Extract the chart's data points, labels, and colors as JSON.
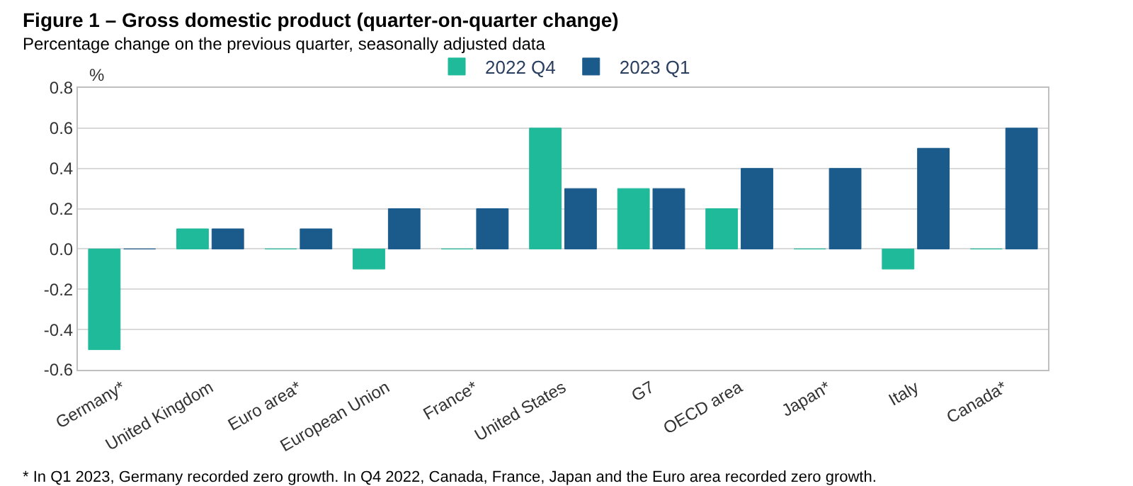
{
  "chart_data": {
    "type": "bar",
    "title": "Figure 1 – Gross domestic product (quarter-on-quarter change)",
    "subtitle": "Percentage change on the previous quarter, seasonally adjusted data",
    "ylabel": "%",
    "categories": [
      "Germany*",
      "United Kingdom",
      "Euro area*",
      "European Union",
      "France*",
      "United States",
      "G7",
      "OECD area",
      "Japan*",
      "Italy",
      "Canada*"
    ],
    "series": [
      {
        "name": "2022 Q4",
        "color": "#1fba9a",
        "values": [
          -0.5,
          0.1,
          0,
          -0.1,
          0,
          0.6,
          0.3,
          0.2,
          0,
          -0.1,
          0
        ]
      },
      {
        "name": "2023 Q1",
        "color": "#1a5b8c",
        "values": [
          0,
          0.1,
          0.1,
          0.2,
          0.2,
          0.3,
          0.3,
          0.4,
          0.4,
          0.5,
          0.6
        ]
      }
    ],
    "ylim": [
      -0.6,
      0.8
    ],
    "yticks": [
      {
        "value": -0.6,
        "label": "-0.6"
      },
      {
        "value": -0.4,
        "label": "-0.4"
      },
      {
        "value": -0.2,
        "label": "-0.2"
      },
      {
        "value": 0,
        "label": "0.0"
      },
      {
        "value": 0.2,
        "label": "0.2"
      },
      {
        "value": 0.4,
        "label": "0.4"
      },
      {
        "value": 0.6,
        "label": "0.6"
      },
      {
        "value": 0.8,
        "label": "0.8"
      }
    ],
    "grid": "y",
    "legend": "top",
    "annotations": [
      "* In Q1 2023, Germany recorded zero growth. In Q4 2022, Canada, France, Japan and the Euro area recorded zero growth."
    ]
  }
}
